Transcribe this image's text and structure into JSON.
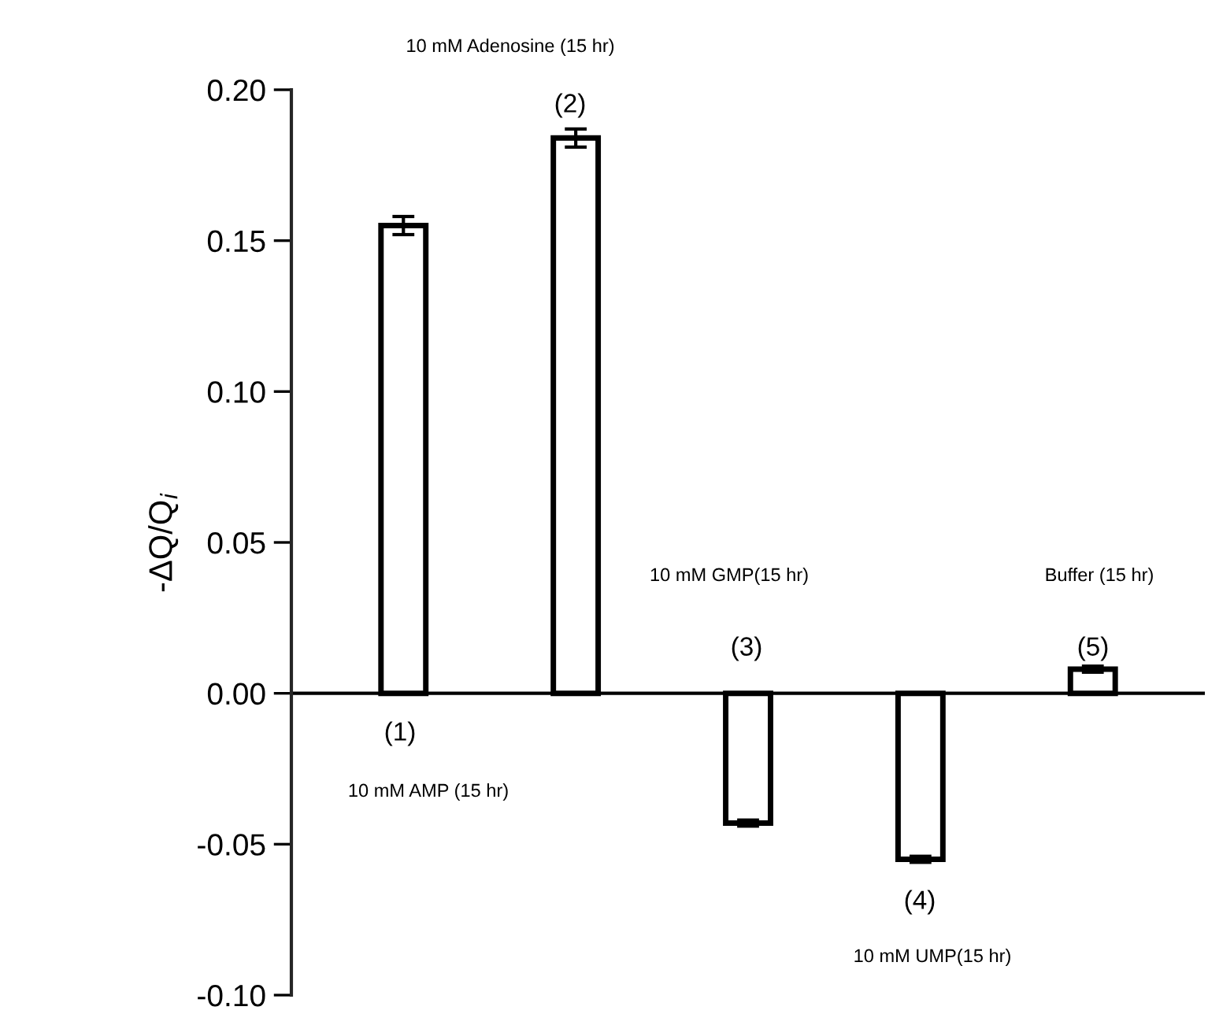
{
  "chart_data": {
    "type": "bar",
    "ylabel": "-ΔQ/Q$_{i}$",
    "categories": [
      null,
      null,
      null,
      null,
      null
    ],
    "values": [
      0.155,
      0.184,
      -0.043,
      -0.055,
      0.008
    ],
    "errors": [
      0.003,
      0.003,
      0.001,
      0.001,
      0.001
    ],
    "color": "#ffffff",
    "ylim": [
      -0.1,
      0.2
    ],
    "yticks": [
      {
        "value": -0.1,
        "label": "-0.10"
      },
      {
        "value": -0.05,
        "label": "-0.05"
      },
      {
        "value": 0.0,
        "label": "0.00"
      },
      {
        "value": 0.05,
        "label": "0.05"
      },
      {
        "value": 0.1,
        "label": "0.10"
      },
      {
        "value": 0.15,
        "label": "0.15"
      },
      {
        "value": 0.2,
        "label": "0.20"
      }
    ],
    "annotations": [
      "10 mM AMP (15 hr)",
      "(1)",
      "10 mM Adenosine (15 hr)",
      "(2)",
      "10 mM GMP(15 hr)",
      "(3)",
      "10 mM UMP(15 hr)",
      "(4)",
      "Buffer (15 hr)",
      "(5)"
    ]
  }
}
